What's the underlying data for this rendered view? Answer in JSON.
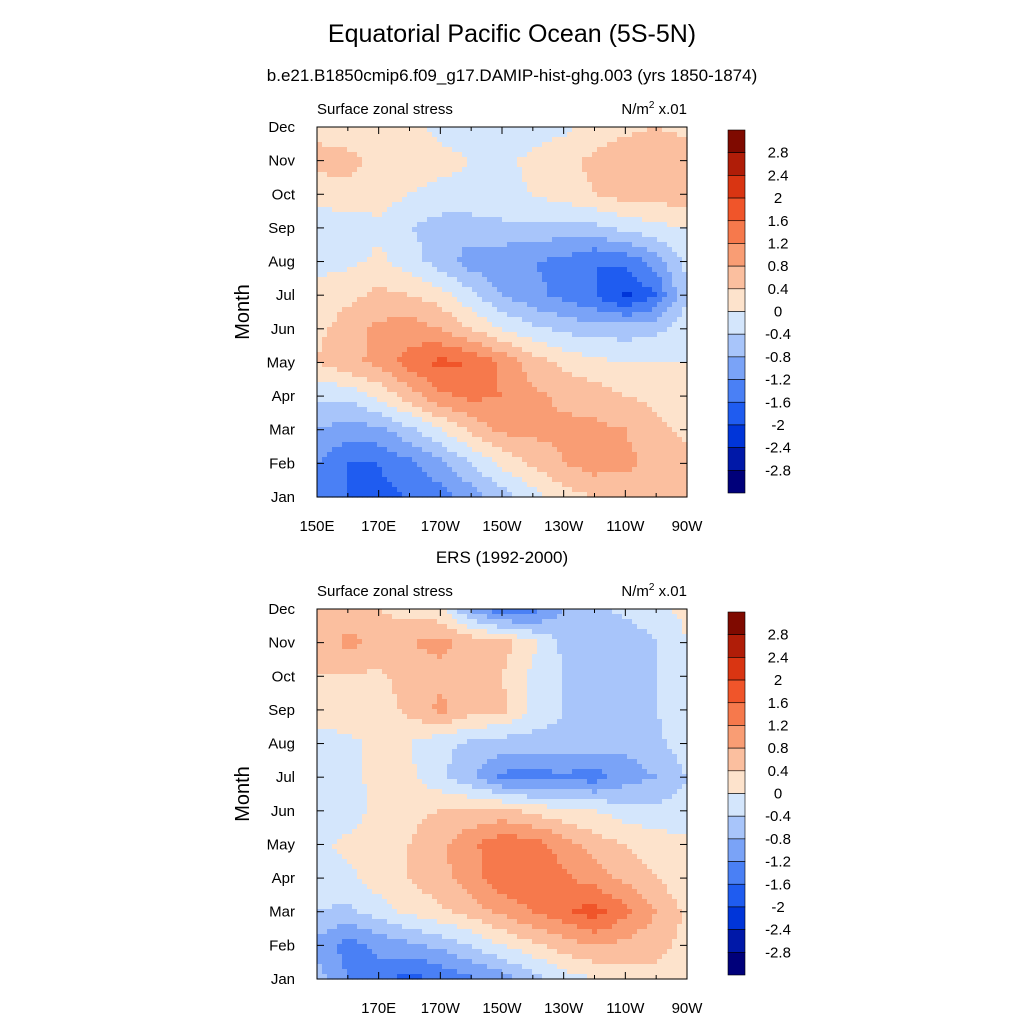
{
  "figure": {
    "title": "Equatorial Pacific Ocean (5S-5N)",
    "subtitle": "b.e21.B1850cmip6.f09_g17.DAMIP-hist-ghg.003 (yrs 1850-1874)"
  },
  "colorbar": {
    "colors": [
      "#00007a",
      "#0018a8",
      "#0035d9",
      "#1f5cf0",
      "#4a80f5",
      "#7aa3f7",
      "#a8c5fa",
      "#d4e6fc",
      "#fde3cc",
      "#fbbf9f",
      "#f99d74",
      "#f6794c",
      "#f0552a",
      "#d93512",
      "#b01d08",
      "#7f0a00"
    ],
    "labels": [
      "-2.8",
      "-2.4",
      "-2",
      "-1.6",
      "-1.2",
      "-0.8",
      "-0.4",
      "0",
      "0.4",
      "0.8",
      "1.2",
      "1.6",
      "2",
      "2.4",
      "2.8"
    ]
  },
  "panels": [
    {
      "title": "",
      "left_label": "Surface zonal stress",
      "right_label_base": "N/m",
      "right_label_exp": "2",
      "right_label_suffix": " x.01",
      "ylabel": "Month",
      "months": [
        "Jan",
        "Feb",
        "Mar",
        "Apr",
        "May",
        "Jun",
        "Jul",
        "Aug",
        "Sep",
        "Oct",
        "Nov",
        "Dec"
      ],
      "xticks": [
        "150E",
        "170E",
        "170W",
        "150W",
        "130W",
        "110W",
        "90W"
      ]
    },
    {
      "title": "ERS (1992-2000)",
      "left_label": "Surface zonal stress",
      "right_label_base": "N/m",
      "right_label_exp": "2",
      "right_label_suffix": " x.01",
      "ylabel": "Month",
      "months": [
        "Jan",
        "Feb",
        "Mar",
        "Apr",
        "May",
        "Jun",
        "Jul",
        "Aug",
        "Sep",
        "Oct",
        "Nov",
        "Dec"
      ],
      "xticks": [
        "",
        "170E",
        "170W",
        "150W",
        "130W",
        "110W",
        "90W"
      ]
    }
  ],
  "chart_data": [
    {
      "type": "heatmap",
      "title": "Equatorial Pacific Ocean (5S-5N)",
      "subtitle": "b.e21.B1850cmip6.f09_g17.DAMIP-hist-ghg.003 (yrs 1850-1874)",
      "left_label": "Surface zonal stress",
      "units": "N/m2 x.01",
      "ylabel": "Month",
      "x_lon_deg_east": [
        150,
        160,
        170,
        180,
        190,
        200,
        210,
        220,
        230,
        240,
        250,
        260,
        270
      ],
      "y": [
        "Jan",
        "Feb",
        "Mar",
        "Apr",
        "May",
        "Jun",
        "Jul",
        "Aug",
        "Sep",
        "Oct",
        "Nov",
        "Dec"
      ],
      "z": [
        [
          -1.4,
          -1.6,
          -1.7,
          -1.6,
          -1.4,
          -1.0,
          -0.6,
          -0.2,
          0.2,
          0.4,
          0.5,
          0.5,
          0.4
        ],
        [
          -1.2,
          -1.6,
          -1.6,
          -1.3,
          -0.9,
          -0.4,
          0.1,
          0.5,
          0.8,
          1.0,
          0.9,
          0.7,
          0.5
        ],
        [
          -0.8,
          -1.0,
          -0.9,
          -0.5,
          0.0,
          0.5,
          0.9,
          0.9,
          0.9,
          0.9,
          0.8,
          0.5,
          0.3
        ],
        [
          -0.3,
          -0.3,
          0.1,
          0.6,
          1.1,
          1.3,
          1.2,
          0.9,
          0.7,
          0.6,
          0.4,
          0.3,
          0.2
        ],
        [
          0.4,
          0.7,
          0.9,
          1.4,
          1.7,
          1.6,
          1.1,
          0.6,
          0.3,
          0.1,
          0.0,
          0.0,
          0.0
        ],
        [
          0.3,
          0.6,
          0.9,
          1.0,
          0.8,
          0.4,
          0.0,
          -0.3,
          -0.5,
          -0.6,
          -0.6,
          -0.5,
          -0.2
        ],
        [
          0.1,
          0.3,
          0.5,
          0.4,
          0.2,
          -0.3,
          -0.8,
          -1.1,
          -1.3,
          -1.6,
          -2.1,
          -1.6,
          -0.4
        ],
        [
          -0.1,
          -0.1,
          0.1,
          -0.2,
          -0.6,
          -1.0,
          -1.1,
          -1.2,
          -1.3,
          -1.6,
          -1.5,
          -1.0,
          -0.3
        ],
        [
          -0.2,
          -0.3,
          -0.1,
          -0.4,
          -0.6,
          -0.6,
          -0.5,
          -0.5,
          -0.6,
          -0.5,
          -0.3,
          -0.1,
          0.0
        ],
        [
          0.1,
          0.3,
          0.2,
          0.0,
          -0.1,
          -0.1,
          -0.1,
          0.0,
          0.2,
          0.4,
          0.6,
          0.6,
          0.6
        ],
        [
          0.6,
          0.5,
          0.3,
          0.2,
          0.1,
          0.0,
          -0.1,
          0.1,
          0.3,
          0.5,
          0.7,
          0.7,
          0.6
        ],
        [
          0.2,
          0.2,
          0.2,
          0.1,
          -0.1,
          -0.2,
          -0.3,
          -0.2,
          -0.1,
          0.1,
          0.3,
          0.4,
          0.3
        ]
      ],
      "levels": [
        -2.8,
        -2.4,
        -2,
        -1.6,
        -1.2,
        -0.8,
        -0.4,
        0,
        0.4,
        0.8,
        1.2,
        1.6,
        2,
        2.4,
        2.8
      ]
    },
    {
      "type": "heatmap",
      "title": "ERS (1992-2000)",
      "left_label": "Surface zonal stress",
      "units": "N/m2 x.01",
      "ylabel": "Month",
      "x_lon_deg_east": [
        150,
        160,
        170,
        180,
        190,
        200,
        210,
        220,
        230,
        240,
        250,
        260,
        270
      ],
      "y": [
        "Jan",
        "Feb",
        "Mar",
        "Apr",
        "May",
        "Jun",
        "Jul",
        "Aug",
        "Sep",
        "Oct",
        "Nov",
        "Dec"
      ],
      "z": [
        [
          -0.6,
          -1.2,
          -1.4,
          -1.8,
          -1.5,
          -1.3,
          -1.0,
          -0.6,
          -0.2,
          0.0,
          0.2,
          0.3,
          0.2
        ],
        [
          -0.9,
          -1.4,
          -1.1,
          -0.9,
          -0.7,
          -0.4,
          0.0,
          0.3,
          0.6,
          0.8,
          0.7,
          0.5,
          0.3
        ],
        [
          -0.4,
          -0.5,
          -0.2,
          0.1,
          0.3,
          0.6,
          0.9,
          1.2,
          1.5,
          1.8,
          1.3,
          0.8,
          0.3
        ],
        [
          -0.2,
          -0.1,
          0.2,
          0.4,
          0.7,
          1.0,
          1.5,
          1.6,
          1.3,
          1.0,
          0.7,
          0.4,
          0.1
        ],
        [
          -0.1,
          0.1,
          0.3,
          0.4,
          0.7,
          1.1,
          1.5,
          1.4,
          1.0,
          0.6,
          0.4,
          0.2,
          0.1
        ],
        [
          -0.4,
          -0.2,
          0.1,
          0.3,
          0.4,
          0.5,
          0.5,
          0.3,
          0.1,
          0.0,
          -0.2,
          -0.3,
          -0.2
        ],
        [
          -0.2,
          -0.1,
          0.1,
          0.1,
          -0.3,
          -0.7,
          -1.3,
          -1.4,
          -1.3,
          -1.4,
          -1.0,
          -0.8,
          -0.4
        ],
        [
          -0.3,
          -0.1,
          0.1,
          0.0,
          -0.3,
          -0.5,
          -0.6,
          -0.6,
          -0.5,
          -0.6,
          -0.7,
          -0.5,
          -0.2
        ],
        [
          0.3,
          0.3,
          0.2,
          0.5,
          0.9,
          0.6,
          0.5,
          -0.1,
          -0.4,
          -0.7,
          -0.6,
          -0.4,
          -0.1
        ],
        [
          0.4,
          0.4,
          0.3,
          0.6,
          0.7,
          0.5,
          0.4,
          -0.1,
          -0.4,
          -0.8,
          -0.6,
          -0.4,
          -0.1
        ],
        [
          0.5,
          0.9,
          0.7,
          0.8,
          0.9,
          0.7,
          0.6,
          0.1,
          -0.5,
          -0.8,
          -0.7,
          -0.4,
          0.0
        ],
        [
          0.6,
          0.6,
          0.4,
          0.2,
          0.1,
          -0.9,
          -1.6,
          -1.4,
          -0.8,
          -0.5,
          -0.3,
          -0.1,
          0.1
        ]
      ],
      "levels": [
        -2.8,
        -2.4,
        -2,
        -1.6,
        -1.2,
        -0.8,
        -0.4,
        0,
        0.4,
        0.8,
        1.2,
        1.6,
        2,
        2.4,
        2.8
      ]
    }
  ]
}
